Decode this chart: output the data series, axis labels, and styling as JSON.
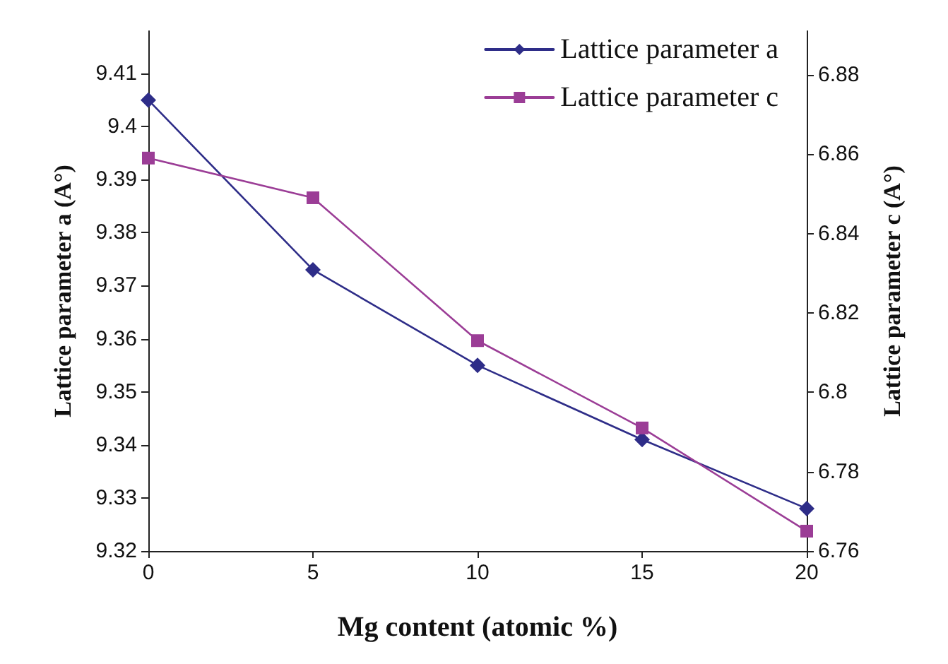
{
  "chart_data": {
    "type": "line",
    "xlabel": "Mg content (atomic %)",
    "ylabel": "Lattice parameter a (A°)",
    "y2label": "Lattice parameter c (A°)",
    "x": [
      0,
      5,
      10,
      15,
      20
    ],
    "xlim": [
      0,
      20
    ],
    "xticks": [
      0,
      5,
      10,
      15,
      20
    ],
    "ylim": [
      9.32,
      9.418
    ],
    "yticks": [
      9.32,
      9.33,
      9.34,
      9.35,
      9.36,
      9.37,
      9.38,
      9.39,
      9.4,
      9.41
    ],
    "y2lim": [
      6.76,
      6.891
    ],
    "y2ticks": [
      6.76,
      6.78,
      6.8,
      6.82,
      6.84,
      6.86,
      6.88
    ],
    "series": [
      {
        "name": "Lattice parameter a",
        "color": "#2e2d88",
        "marker": "diamond",
        "values": [
          9.405,
          9.373,
          9.355,
          9.341,
          9.328
        ]
      },
      {
        "name": "Lattice parameter c",
        "color": "#9b3d96",
        "marker": "square",
        "axis": "y2",
        "values": [
          6.859,
          6.849,
          6.813,
          6.791,
          6.765
        ]
      }
    ],
    "legend": "top right",
    "grid": false,
    "line_style": "solid"
  }
}
